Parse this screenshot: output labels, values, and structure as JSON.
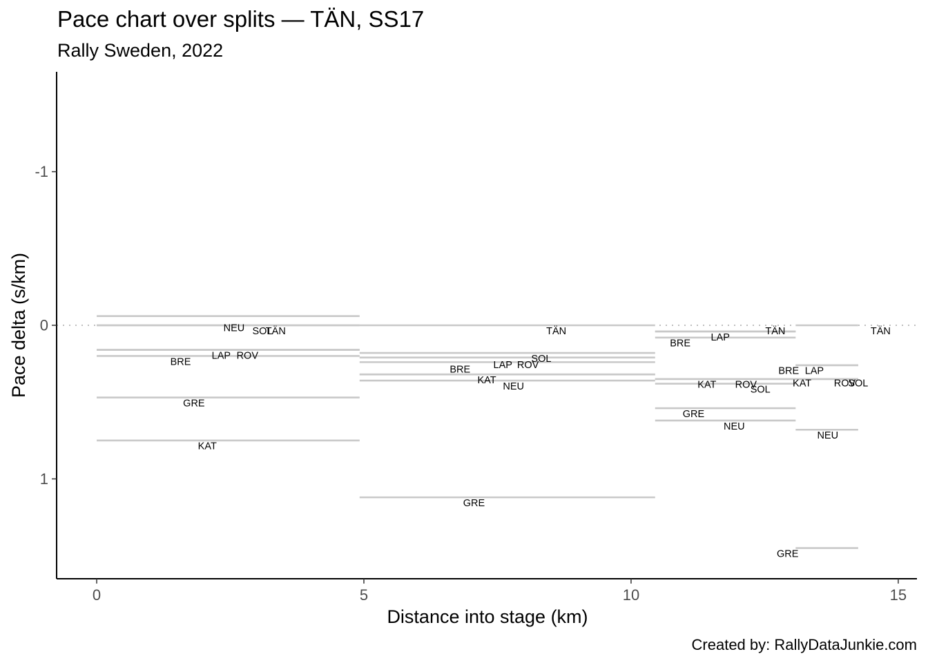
{
  "chart_data": {
    "type": "segment",
    "title": "Pace chart over splits — TÄN, SS17",
    "subtitle": "Rally Sweden, 2022",
    "xlabel": "Distance into stage (km)",
    "ylabel": "Pace delta (s/km)",
    "caption": "Created by: RallyDataJunkie.com",
    "xlim": [
      -0.75,
      15.35
    ],
    "ylim": [
      1.65,
      -1.65
    ],
    "y_reversed": true,
    "x_ticks": [
      0,
      5,
      10,
      15
    ],
    "x_tick_labels": [
      "0",
      "5",
      "10",
      "15"
    ],
    "y_ticks": [
      -1,
      0,
      1
    ],
    "y_tick_labels": [
      "-1",
      "0",
      "1"
    ],
    "reference_line": {
      "y": 0,
      "style": "dotted",
      "xmin": -0.75,
      "xmax": 15.35
    },
    "segments": [
      {
        "code": "NEU",
        "x0": 0,
        "x1": 4.92,
        "y": -0.06,
        "label_x": 2.57,
        "label_y": 0.02
      },
      {
        "code": "SOL",
        "x0": 0,
        "x1": 4.92,
        "y": 0.0,
        "label_x": 3.1,
        "label_y": 0.04
      },
      {
        "code": "TÄN",
        "x0": 0,
        "x1": 4.92,
        "y": 0.0,
        "label_x": 3.35,
        "label_y": 0.04
      },
      {
        "code": "LAP",
        "x0": 0,
        "x1": 4.92,
        "y": 0.16,
        "label_x": 2.33,
        "label_y": 0.2
      },
      {
        "code": "ROV",
        "x0": 0,
        "x1": 4.92,
        "y": 0.16,
        "label_x": 2.82,
        "label_y": 0.2
      },
      {
        "code": "BRE",
        "x0": 0,
        "x1": 4.92,
        "y": 0.2,
        "label_x": 1.57,
        "label_y": 0.24
      },
      {
        "code": "GRE",
        "x0": 0,
        "x1": 4.92,
        "y": 0.47,
        "label_x": 1.82,
        "label_y": 0.51
      },
      {
        "code": "KAT",
        "x0": 0,
        "x1": 4.92,
        "y": 0.75,
        "label_x": 2.07,
        "label_y": 0.79
      },
      {
        "code": "TÄN",
        "x0": 4.92,
        "x1": 10.45,
        "y": 0.0,
        "label_x": 8.6,
        "label_y": 0.04
      },
      {
        "code": "SOL",
        "x0": 4.92,
        "x1": 10.45,
        "y": 0.18,
        "label_x": 8.32,
        "label_y": 0.22
      },
      {
        "code": "ROV",
        "x0": 4.92,
        "x1": 10.45,
        "y": 0.21,
        "label_x": 8.07,
        "label_y": 0.26
      },
      {
        "code": "LAP",
        "x0": 4.92,
        "x1": 10.45,
        "y": 0.24,
        "label_x": 7.6,
        "label_y": 0.26
      },
      {
        "code": "BRE",
        "x0": 4.92,
        "x1": 10.45,
        "y": 0.32,
        "label_x": 6.8,
        "label_y": 0.29
      },
      {
        "code": "KAT",
        "x0": 4.92,
        "x1": 10.45,
        "y": 0.32,
        "label_x": 7.3,
        "label_y": 0.36
      },
      {
        "code": "NEU",
        "x0": 4.92,
        "x1": 10.45,
        "y": 0.36,
        "label_x": 7.8,
        "label_y": 0.4
      },
      {
        "code": "GRE",
        "x0": 4.92,
        "x1": 10.45,
        "y": 1.12,
        "label_x": 7.06,
        "label_y": 1.16
      },
      {
        "code": "TÄN",
        "x0": 10.45,
        "x1": 13.08,
        "y": 0.04,
        "label_x": 12.7,
        "label_y": 0.04
      },
      {
        "code": "BRE",
        "x0": 10.45,
        "x1": 13.08,
        "y": 0.04,
        "label_x": 10.92,
        "label_y": 0.12
      },
      {
        "code": "LAP",
        "x0": 10.45,
        "x1": 13.08,
        "y": 0.08,
        "label_x": 11.67,
        "label_y": 0.08
      },
      {
        "code": "KAT",
        "x0": 10.45,
        "x1": 13.08,
        "y": 0.35,
        "label_x": 11.42,
        "label_y": 0.39
      },
      {
        "code": "ROV",
        "x0": 10.45,
        "x1": 13.08,
        "y": 0.35,
        "label_x": 12.15,
        "label_y": 0.39
      },
      {
        "code": "SOL",
        "x0": 10.45,
        "x1": 13.08,
        "y": 0.38,
        "label_x": 12.42,
        "label_y": 0.42
      },
      {
        "code": "GRE",
        "x0": 10.45,
        "x1": 13.08,
        "y": 0.54,
        "label_x": 11.17,
        "label_y": 0.58
      },
      {
        "code": "NEU",
        "x0": 10.45,
        "x1": 13.08,
        "y": 0.62,
        "label_x": 11.93,
        "label_y": 0.66
      },
      {
        "code": "TÄN",
        "x0": 13.08,
        "x1": 14.25,
        "y": 0.0,
        "label_x": 14.67,
        "label_y": 0.04
      },
      {
        "code": "LAP",
        "x0": 13.08,
        "x1": 14.25,
        "y": 0.26,
        "label_x": 13.43,
        "label_y": 0.3
      },
      {
        "code": "BRE",
        "x0": 13.08,
        "x1": 14.25,
        "y": 0.26,
        "label_x": 12.95,
        "label_y": 0.3
      },
      {
        "code": "KAT",
        "x0": 13.08,
        "x1": 14.25,
        "y": 0.35,
        "label_x": 13.2,
        "label_y": 0.38
      },
      {
        "code": "ROV",
        "x0": 13.08,
        "x1": 14.25,
        "y": 0.35,
        "label_x": 14.0,
        "label_y": 0.38
      },
      {
        "code": "SOL",
        "x0": 13.08,
        "x1": 14.25,
        "y": 0.35,
        "label_x": 14.25,
        "label_y": 0.38
      },
      {
        "code": "NEU",
        "x0": 13.08,
        "x1": 14.25,
        "y": 0.68,
        "label_x": 13.68,
        "label_y": 0.72
      },
      {
        "code": "GRE",
        "x0": 13.08,
        "x1": 14.25,
        "y": 1.45,
        "label_x": 12.93,
        "label_y": 1.49
      }
    ]
  }
}
